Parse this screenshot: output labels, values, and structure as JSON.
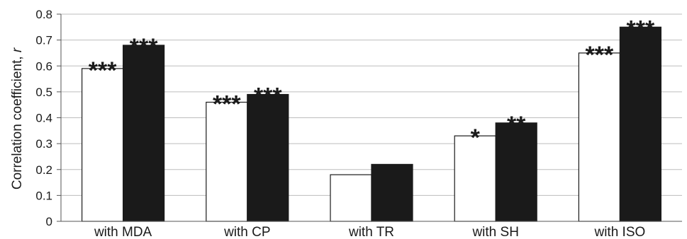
{
  "chart_data": {
    "type": "bar",
    "title": "",
    "xlabel": "",
    "ylabel": "Correlation coefficient, ",
    "ylabel_variable": "r",
    "ylim": [
      0,
      0.8
    ],
    "yticks": [
      {
        "value": 0,
        "label": "0"
      },
      {
        "value": 0.1,
        "label": "0.1"
      },
      {
        "value": 0.2,
        "label": "0.2"
      },
      {
        "value": 0.3,
        "label": "0.3"
      },
      {
        "value": 0.4,
        "label": "0.4"
      },
      {
        "value": 0.5,
        "label": "0.5"
      },
      {
        "value": 0.6,
        "label": "0.6"
      },
      {
        "value": 0.7,
        "label": "0.7"
      },
      {
        "value": 0.8,
        "label": "0.8"
      }
    ],
    "grid": true,
    "legend": "none",
    "categories": [
      "with MDA",
      "with CP",
      "with TR",
      "with SH",
      "with ISO"
    ],
    "series": [
      {
        "fill": "#ffffff",
        "values": [
          0.59,
          0.46,
          0.18,
          0.33,
          0.65
        ],
        "significance": [
          "***",
          "***",
          "",
          "*",
          "***"
        ]
      },
      {
        "fill": "#1a1a1a",
        "values": [
          0.68,
          0.49,
          0.22,
          0.38,
          0.75
        ],
        "significance": [
          "***",
          "***",
          "",
          "**",
          "***"
        ]
      }
    ]
  }
}
